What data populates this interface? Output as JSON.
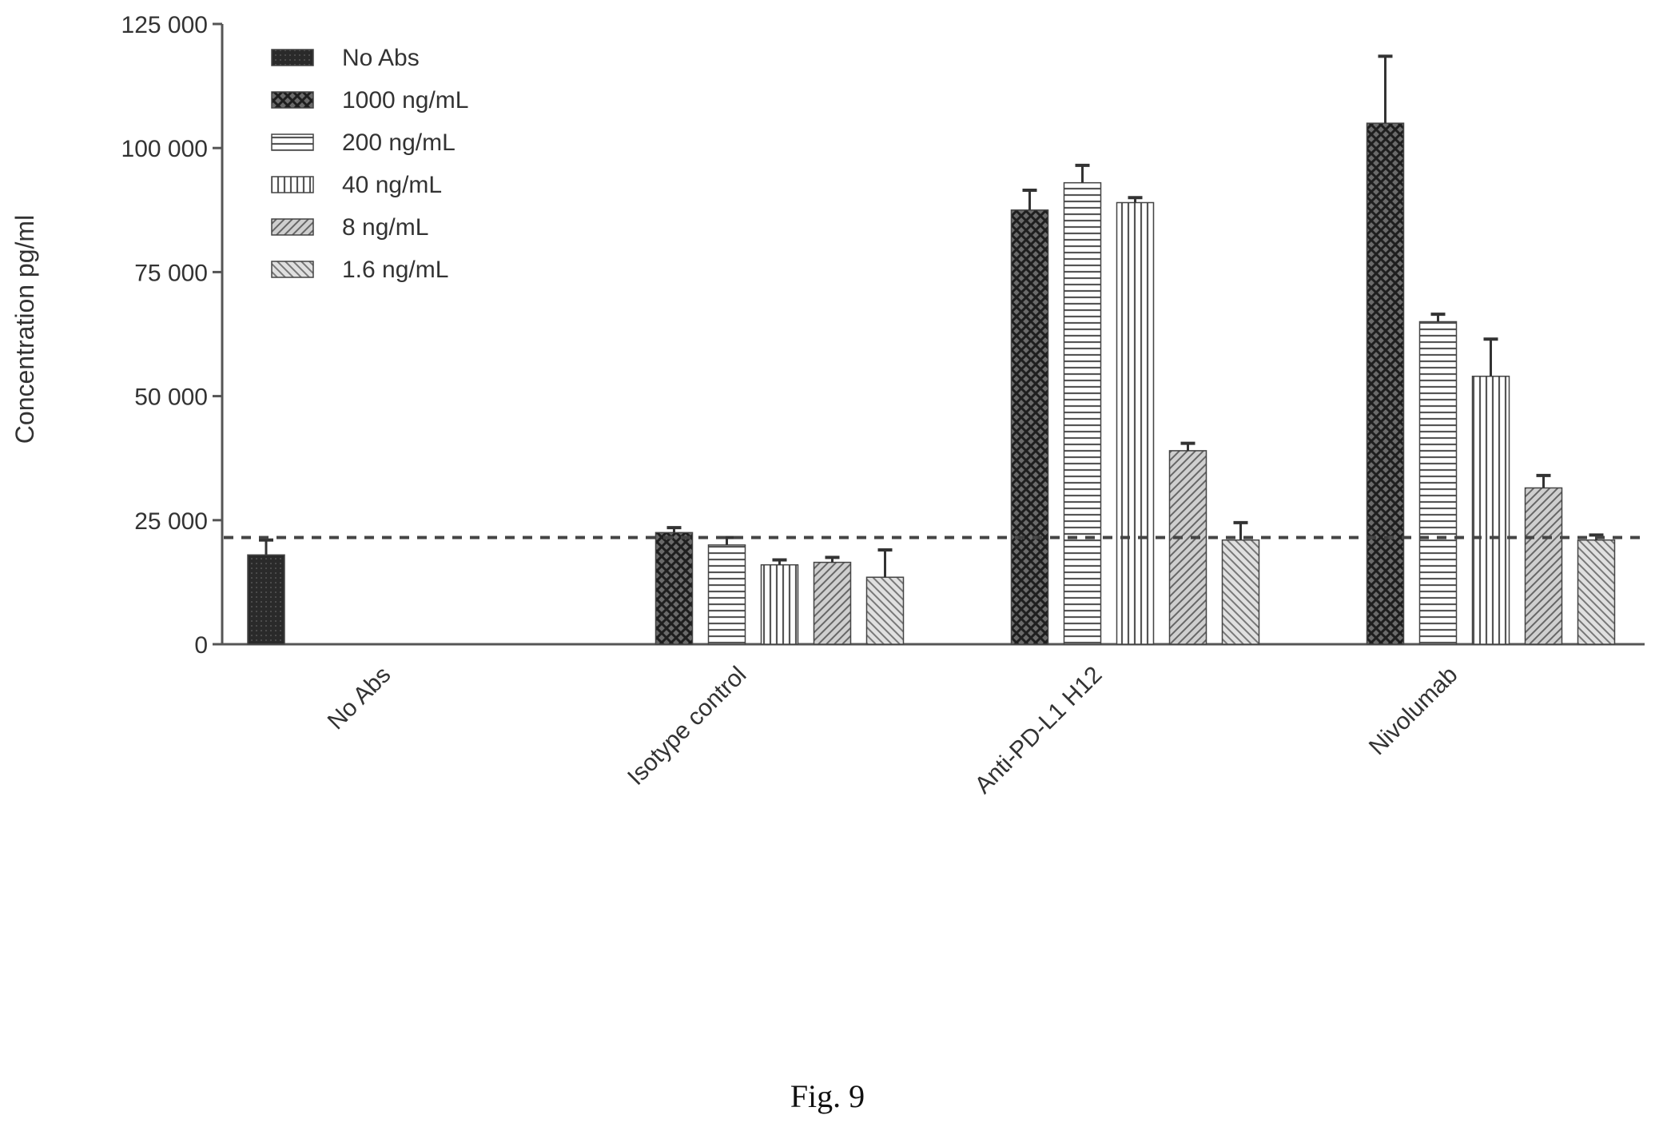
{
  "chart_data": {
    "type": "bar",
    "title": "",
    "xlabel": "",
    "ylabel": "Concentration pg/ml",
    "ylim": [
      0,
      125000
    ],
    "yticks": [
      0,
      25000,
      50000,
      75000,
      100000,
      125000
    ],
    "ytick_labels": [
      "0",
      "25 000",
      "50 000",
      "75 000",
      "100 000",
      "125 000"
    ],
    "categories": [
      "No Abs",
      "Isotype control",
      "Anti-PD-L1 H12",
      "Nivolumab"
    ],
    "reference_line": 21500,
    "legend_position": "top-left",
    "series": [
      {
        "name": "No Abs",
        "pattern": "solid",
        "values": [
          18000,
          null,
          null,
          null
        ],
        "errors": [
          3000,
          null,
          null,
          null
        ]
      },
      {
        "name": "1000 ng/mL",
        "pattern": "crosshatch",
        "values": [
          null,
          22500,
          87500,
          105000
        ],
        "errors": [
          null,
          1000,
          4000,
          13500
        ]
      },
      {
        "name": "200 ng/mL",
        "pattern": "horizontal",
        "values": [
          null,
          20000,
          93000,
          65000
        ],
        "errors": [
          null,
          1500,
          3500,
          1500
        ]
      },
      {
        "name": "40 ng/mL",
        "pattern": "vertical",
        "values": [
          null,
          16000,
          89000,
          54000
        ],
        "errors": [
          null,
          1000,
          1000,
          7500
        ]
      },
      {
        "name": "8 ng/mL",
        "pattern": "diagonal-right",
        "values": [
          null,
          16500,
          39000,
          31500
        ],
        "errors": [
          null,
          1000,
          1500,
          2500
        ]
      },
      {
        "name": "1.6 ng/mL",
        "pattern": "diagonal-left",
        "values": [
          null,
          13500,
          21000,
          21000
        ],
        "errors": [
          null,
          5500,
          3500,
          1000
        ]
      }
    ]
  },
  "caption": "Fig. 9"
}
